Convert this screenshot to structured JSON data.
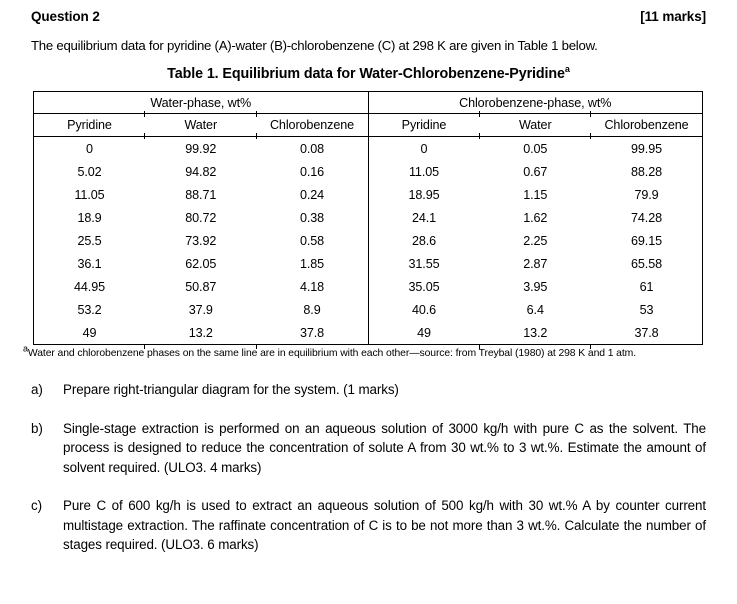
{
  "header": {
    "question_label": "Question 2",
    "marks_label": "[11 marks]"
  },
  "intro": "The equilibrium data for pyridine (A)-water (B)-chlorobenzene (C) at 298 K are given in Table 1 below.",
  "table": {
    "title": "Table 1. Equilibrium data for Water-Chlorobenzene-Pyridine",
    "title_superscript": "a",
    "group_headers": [
      "Water-phase, wt%",
      "Chlorobenzene-phase, wt%"
    ],
    "column_headers": [
      "Pyridine",
      "Water",
      "Chlorobenzene",
      "Pyridine",
      "Water",
      "Chlorobenzene"
    ],
    "rows": [
      [
        "0",
        "99.92",
        "0.08",
        "0",
        "0.05",
        "99.95"
      ],
      [
        "5.02",
        "94.82",
        "0.16",
        "11.05",
        "0.67",
        "88.28"
      ],
      [
        "11.05",
        "88.71",
        "0.24",
        "18.95",
        "1.15",
        "79.9"
      ],
      [
        "18.9",
        "80.72",
        "0.38",
        "24.1",
        "1.62",
        "74.28"
      ],
      [
        "25.5",
        "73.92",
        "0.58",
        "28.6",
        "2.25",
        "69.15"
      ],
      [
        "36.1",
        "62.05",
        "1.85",
        "31.55",
        "2.87",
        "65.58"
      ],
      [
        "44.95",
        "50.87",
        "4.18",
        "35.05",
        "3.95",
        "61"
      ],
      [
        "53.2",
        "37.9",
        "8.9",
        "40.6",
        "6.4",
        "53"
      ],
      [
        "49",
        "13.2",
        "37.8",
        "49",
        "13.2",
        "37.8"
      ]
    ],
    "footnote_superscript": "a",
    "footnote": "Water and chlorobenzene phases on the same line are in equilibrium with each other—source: from Treybal (1980) at 298 K and 1 atm."
  },
  "questions": [
    {
      "marker": "a)",
      "text": "Prepare right-triangular diagram for the system. (1 marks)"
    },
    {
      "marker": "b)",
      "text": "Single-stage extraction is performed on an aqueous solution of 3000 kg/h with pure C as the solvent. The process is designed to reduce the concentration of solute A from 30 wt.% to 3 wt.%. Estimate the amount of solvent required. (ULO3. 4 marks)"
    },
    {
      "marker": "c)",
      "text": "Pure C of 600 kg/h is used to extract an aqueous solution of 500 kg/h with 30 wt.% A by counter current multistage extraction. The raffinate concentration of C is to be not more than 3 wt.%. Calculate the number of stages required. (ULO3. 6 marks)"
    }
  ],
  "colors": {
    "text": "#000000",
    "border": "#000000",
    "page_background": "#ffffff"
  }
}
